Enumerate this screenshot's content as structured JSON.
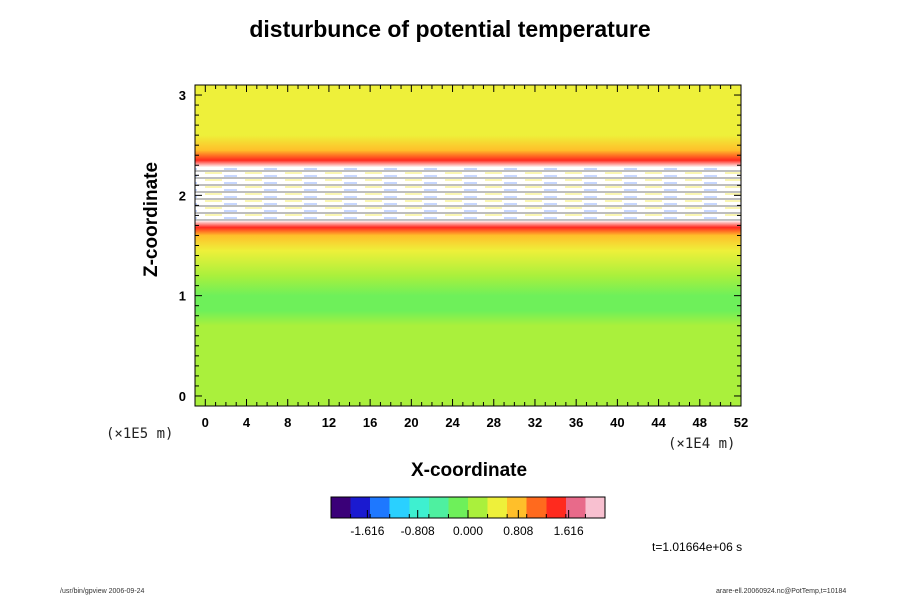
{
  "chart_data": {
    "type": "heatmap",
    "title": "disturbunce of potential temperature",
    "xlabel": "X-coordinate",
    "ylabel": "Z-coordinate",
    "xlim": [
      -1,
      52
    ],
    "ylim": [
      -0.1,
      3.1
    ],
    "x_ticks": [
      "0",
      "4",
      "8",
      "12",
      "16",
      "20",
      "24",
      "28",
      "32",
      "36",
      "40",
      "44",
      "48",
      "52"
    ],
    "y_ticks": [
      "0",
      "1",
      "2",
      "3"
    ],
    "x_unit": "(×1E4 m)",
    "y_unit": "(×1E5 m)",
    "colorbar": {
      "ticks": [
        "-1.616",
        "-0.808",
        "0.000",
        "0.808",
        "1.616"
      ],
      "colors": [
        "#3a0078",
        "#1a1ad0",
        "#1e78ff",
        "#2ad0ff",
        "#3ef0d0",
        "#4ef0a0",
        "#6ef05a",
        "#aaf03c",
        "#eef03a",
        "#ffbf2a",
        "#ff6a1e",
        "#ff2a1e",
        "#e86a8a",
        "#f8c0d0"
      ]
    },
    "field_profile": [
      {
        "z": 3.1,
        "value": 0.45
      },
      {
        "z": 2.8,
        "value": 0.5
      },
      {
        "z": 2.6,
        "value": 0.62
      },
      {
        "z": 2.45,
        "value": 0.8
      },
      {
        "z": 2.35,
        "value": 1.3
      },
      {
        "z": 2.28,
        "value": 2.2
      },
      {
        "z": 1.75,
        "value": 2.2
      },
      {
        "z": 1.68,
        "value": 1.3
      },
      {
        "z": 1.6,
        "value": 0.75
      },
      {
        "z": 1.45,
        "value": 0.4
      },
      {
        "z": 1.2,
        "value": 0.15
      },
      {
        "z": 1.0,
        "value": -0.05
      },
      {
        "z": 0.85,
        "value": -0.15
      },
      {
        "z": 0.7,
        "value": 0.02
      },
      {
        "z": 0.3,
        "value": 0.0
      },
      {
        "z": -0.1,
        "value": 0.0
      }
    ],
    "legend_position": "bottom",
    "grid": false
  },
  "annotations": {
    "time": "t=1.01664e+06 s",
    "footer_left": "/usr/bin/gpview 2006-09-24",
    "footer_right": "arare-ell.20060924.nc@PotTemp,t=10184"
  }
}
